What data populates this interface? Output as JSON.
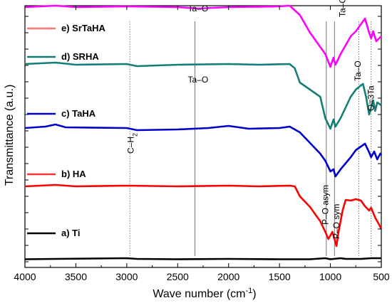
{
  "chart_data": {
    "type": "line",
    "title": "",
    "xlabel": "Wave number (cm",
    "xlabel_sup": "-1",
    "xlabel_tail": ")",
    "ylabel": "Transmittance (a.u.)",
    "xlim": [
      4000,
      500
    ],
    "x_reversed": true,
    "x_ticks": [
      "4000",
      "3500",
      "3000",
      "2500",
      "2000",
      "1500",
      "1000",
      "500"
    ],
    "y_tick_labels": "none",
    "grid": false,
    "legend_position": "left, stacked beside each curve",
    "series": [
      {
        "name": "a) Ti",
        "color": "#000000",
        "points": [
          [
            4000,
            1.5
          ],
          [
            3700,
            2
          ],
          [
            3000,
            3
          ],
          [
            2900,
            2
          ],
          [
            2500,
            1.5
          ],
          [
            2000,
            2
          ],
          [
            1500,
            1.5
          ],
          [
            1200,
            1.5
          ],
          [
            1050,
            3
          ],
          [
            1000,
            1.5
          ],
          [
            900,
            3
          ],
          [
            850,
            2
          ],
          [
            700,
            2
          ],
          [
            600,
            3
          ],
          [
            500,
            3
          ]
        ]
      },
      {
        "name": "b) HA",
        "color": "#ff0000",
        "points": [
          [
            4000,
            104
          ],
          [
            3700,
            106
          ],
          [
            3500,
            104
          ],
          [
            3000,
            105
          ],
          [
            2500,
            104
          ],
          [
            2000,
            105
          ],
          [
            1700,
            104
          ],
          [
            1400,
            105
          ],
          [
            1350,
            104
          ],
          [
            1300,
            90
          ],
          [
            1200,
            75
          ],
          [
            1150,
            65
          ],
          [
            1100,
            55
          ],
          [
            1050,
            40
          ],
          [
            1020,
            30
          ],
          [
            1000,
            35
          ],
          [
            980,
            40
          ],
          [
            960,
            30
          ],
          [
            940,
            20
          ],
          [
            920,
            40
          ],
          [
            880,
            70
          ],
          [
            850,
            85
          ],
          [
            800,
            84
          ],
          [
            750,
            86
          ],
          [
            700,
            84
          ],
          [
            660,
            76
          ],
          [
            620,
            70
          ],
          [
            600,
            74
          ],
          [
            560,
            60
          ],
          [
            520,
            50
          ],
          [
            500,
            44
          ]
        ]
      },
      {
        "name": "c) TaHA",
        "color": "#0000cc",
        "points": [
          [
            4000,
            186
          ],
          [
            3800,
            188
          ],
          [
            3700,
            191
          ],
          [
            3600,
            187
          ],
          [
            3000,
            186
          ],
          [
            2900,
            183
          ],
          [
            2500,
            184
          ],
          [
            2200,
            186
          ],
          [
            2000,
            189
          ],
          [
            1800,
            185
          ],
          [
            1500,
            186
          ],
          [
            1400,
            188
          ],
          [
            1300,
            180
          ],
          [
            1200,
            165
          ],
          [
            1100,
            150
          ],
          [
            1050,
            140
          ],
          [
            1000,
            125
          ],
          [
            970,
            128
          ],
          [
            950,
            118
          ],
          [
            900,
            128
          ],
          [
            800,
            145
          ],
          [
            750,
            155
          ],
          [
            700,
            160
          ],
          [
            660,
            164
          ],
          [
            620,
            152
          ],
          [
            600,
            145
          ],
          [
            570,
            153
          ],
          [
            540,
            142
          ],
          [
            510,
            150
          ],
          [
            500,
            148
          ]
        ]
      },
      {
        "name": "d) SRHA",
        "color": "#127e76",
        "points": [
          [
            4000,
            276
          ],
          [
            3700,
            278
          ],
          [
            3500,
            275
          ],
          [
            3000,
            276
          ],
          [
            2900,
            273
          ],
          [
            2500,
            275
          ],
          [
            2000,
            276
          ],
          [
            1700,
            275
          ],
          [
            1400,
            276
          ],
          [
            1350,
            270
          ],
          [
            1300,
            250
          ],
          [
            1200,
            240
          ],
          [
            1100,
            230
          ],
          [
            1050,
            200
          ],
          [
            1000,
            185
          ],
          [
            970,
            198
          ],
          [
            950,
            188
          ],
          [
            900,
            200
          ],
          [
            800,
            230
          ],
          [
            750,
            240
          ],
          [
            700,
            246
          ],
          [
            680,
            248
          ],
          [
            650,
            230
          ],
          [
            620,
            205
          ],
          [
            580,
            225
          ],
          [
            560,
            210
          ],
          [
            540,
            222
          ],
          [
            500,
            218
          ]
        ]
      },
      {
        "name": "e) SrTaHA",
        "color": "#ff00ff",
        "points": [
          [
            4000,
            356
          ],
          [
            3700,
            358
          ],
          [
            3500,
            356
          ],
          [
            3000,
            357
          ],
          [
            2500,
            356
          ],
          [
            2300,
            354
          ],
          [
            2000,
            356
          ],
          [
            1500,
            357
          ],
          [
            1400,
            358
          ],
          [
            1300,
            345
          ],
          [
            1200,
            320
          ],
          [
            1100,
            300
          ],
          [
            1050,
            290
          ],
          [
            1000,
            272
          ],
          [
            970,
            285
          ],
          [
            950,
            275
          ],
          [
            900,
            290
          ],
          [
            800,
            315
          ],
          [
            750,
            322
          ],
          [
            700,
            332
          ],
          [
            660,
            340
          ],
          [
            620,
            320
          ],
          [
            600,
            312
          ],
          [
            580,
            322
          ],
          [
            550,
            308
          ],
          [
            500,
            315
          ]
        ]
      }
    ],
    "legend": [
      {
        "label": "e) SrTaHA",
        "color": "#ff7777"
      },
      {
        "label": "d) SRHA",
        "color": "#127e76"
      },
      {
        "label": "c) TaHA",
        "color": "#0000cc"
      },
      {
        "label": "b) HA",
        "color": "#ff3333"
      },
      {
        "label": "a) Ti",
        "color": "#000000"
      }
    ],
    "annotations": [
      {
        "text": "Ta–O",
        "x": 2300,
        "offset": 350,
        "rotated": false
      },
      {
        "text": "Ta–O",
        "x": 2300,
        "offset": 250,
        "rotated": false
      },
      {
        "text": "Ta–O–Ta",
        "x": 880,
        "offset": 342,
        "rotated": true
      },
      {
        "text": "Ta–O",
        "x": 730,
        "offset": 252,
        "rotated": true
      },
      {
        "text": "O=3Ta",
        "x": 600,
        "offset": 210,
        "rotated": true
      },
      {
        "text": "C–H",
        "sub": "2",
        "x": 2960,
        "offset": 150,
        "rotated": true
      },
      {
        "text": "P–O asym",
        "x": 1050,
        "offset": 50,
        "rotated": true
      },
      {
        "text": "P–O sym",
        "x": 940,
        "offset": 30,
        "rotated": true
      }
    ],
    "guide_lines": [
      {
        "x": 2970,
        "style": "dotted"
      },
      {
        "x": 2330,
        "style": "solid"
      },
      {
        "x": 1040,
        "style": "solid"
      },
      {
        "x": 960,
        "style": "solid"
      },
      {
        "x": 720,
        "style": "dotted"
      },
      {
        "x": 600,
        "style": "dotted"
      }
    ]
  }
}
